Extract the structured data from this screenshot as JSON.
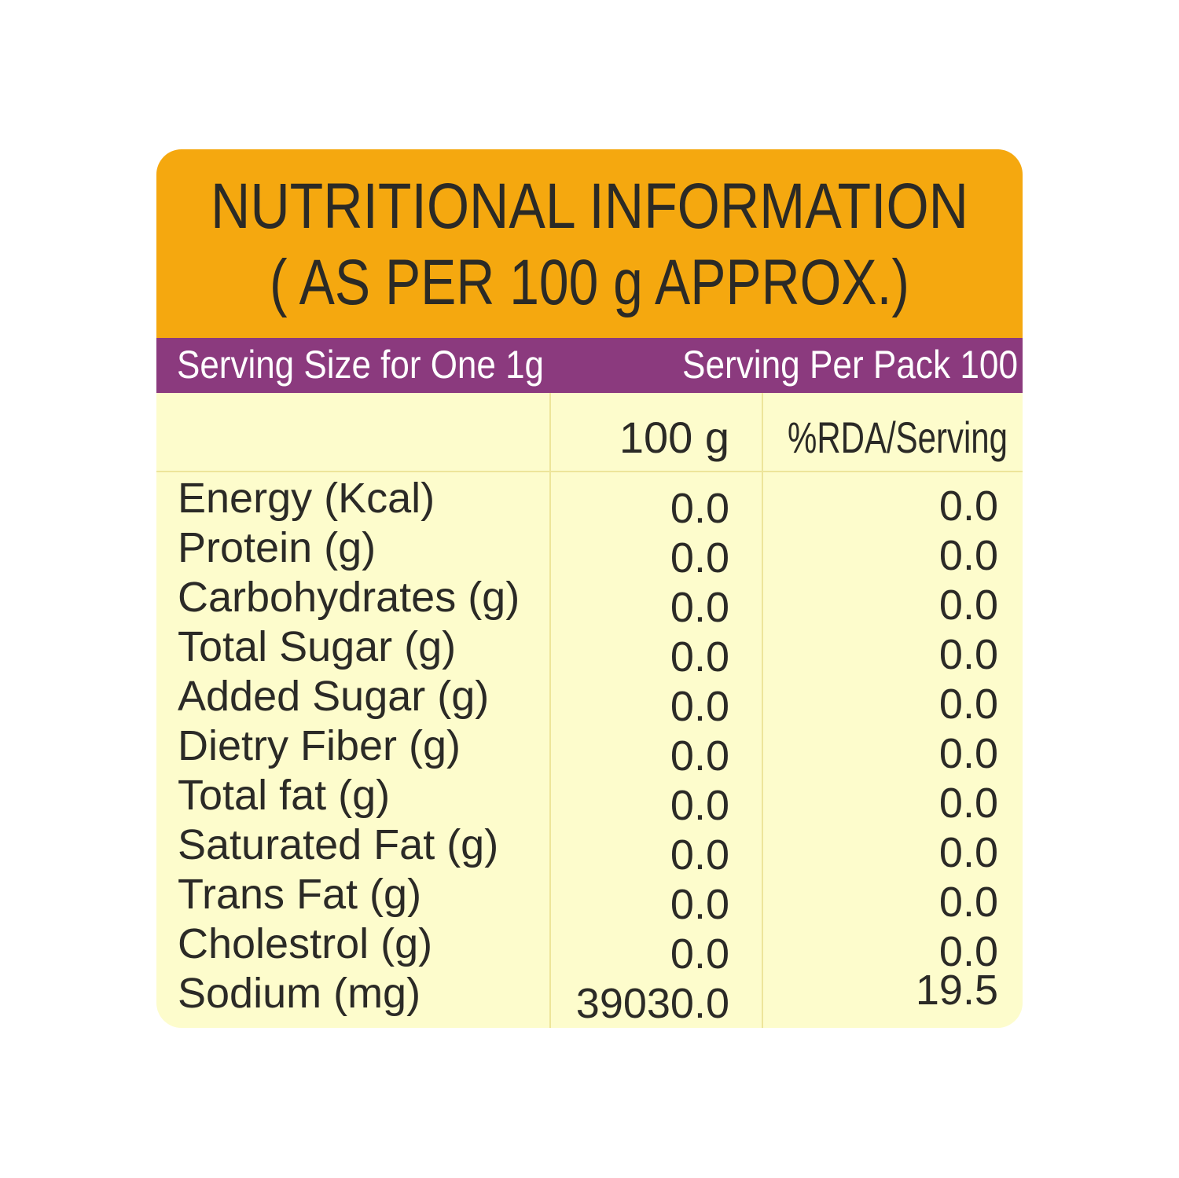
{
  "header": {
    "title": [
      "NUTRITIONAL INFORMATION",
      "( AS PER 100 g APPROX.)"
    ]
  },
  "serving": {
    "size": "Serving Size for One 1g",
    "per_pack": "Serving Per Pack 100"
  },
  "table": {
    "columns": [
      "100 g",
      "%RDA/Serving"
    ],
    "rows": [
      [
        "Energy (Kcal)",
        "0.0",
        "0.0"
      ],
      [
        "Protein (g)",
        "0.0",
        "0.0"
      ],
      [
        "Carbohydrates (g)",
        "0.0",
        "0.0"
      ],
      [
        "Total Sugar (g)",
        "0.0",
        "0.0"
      ],
      [
        "Added Sugar (g)",
        "0.0",
        "0.0"
      ],
      [
        "Dietry Fiber (g)",
        "0.0",
        "0.0"
      ],
      [
        "Total fat (g)",
        "0.0",
        "0.0"
      ],
      [
        "Saturated Fat (g)",
        "0.0",
        "0.0"
      ],
      [
        "Trans Fat (g)",
        "0.0",
        "0.0"
      ],
      [
        "Cholestrol (g)",
        "0.0",
        "0.0"
      ],
      [
        "Sodium (mg)",
        "39030.0",
        "19.5"
      ]
    ]
  }
}
